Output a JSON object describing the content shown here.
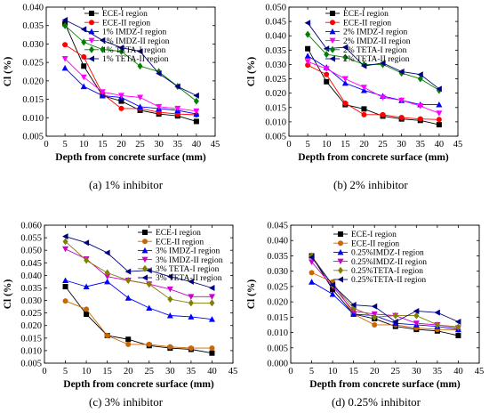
{
  "panels": [
    {
      "caption": "(a) 1% inhibitor",
      "chart_data": {
        "type": "line",
        "xlabel": "Depth from concrete surface (mm)",
        "ylabel": "Cl (%)",
        "xlim": [
          0,
          45
        ],
        "ylim": [
          0.005,
          0.04
        ],
        "xticks": [
          "0",
          "5",
          "10",
          "15",
          "20",
          "25",
          "30",
          "35",
          "40",
          "45"
        ],
        "yticks": [
          "0.005",
          "0.010",
          "0.015",
          "0.020",
          "0.025",
          "0.030",
          "0.035",
          "0.040"
        ],
        "legend_position": "top-right",
        "x": [
          5,
          10,
          15,
          20,
          25,
          30,
          35,
          40
        ],
        "series": [
          {
            "name": "ECE-I  region",
            "color": "#000000",
            "marker": "square",
            "values": [
              0.0355,
              0.024,
              0.016,
              0.0145,
              0.012,
              0.011,
              0.0105,
              0.009
            ]
          },
          {
            "name": "ECE-II region",
            "color": "#ff0000",
            "marker": "circle",
            "values": [
              0.0298,
              0.0265,
              0.0165,
              0.0125,
              0.0125,
              0.0115,
              0.011,
              0.0108
            ]
          },
          {
            "name": "1% IMDZ-I region",
            "color": "#0000ff",
            "marker": "triangle-up",
            "values": [
              0.0235,
              0.0185,
              0.016,
              0.0155,
              0.013,
              0.0125,
              0.012,
              0.011
            ]
          },
          {
            "name": "1% IMDZ-II region",
            "color": "#ff00ff",
            "marker": "triangle-down",
            "values": [
              0.026,
              0.021,
              0.017,
              0.016,
              0.0155,
              0.013,
              0.0125,
              0.0118
            ]
          },
          {
            "name": "1% TETA-I  region",
            "color": "#008000",
            "marker": "diamond",
            "values": [
              0.035,
              0.0305,
              0.0285,
              0.028,
              0.024,
              0.0225,
              0.0185,
              0.0145
            ]
          },
          {
            "name": "1% TETA-II region",
            "color": "#000080",
            "marker": "triangle-left",
            "values": [
              0.0365,
              0.034,
              0.031,
              0.029,
              0.028,
              0.022,
              0.0185,
              0.016
            ]
          }
        ]
      }
    },
    {
      "caption": "(b) 2% inhibitor",
      "chart_data": {
        "type": "line",
        "xlabel": "Depth from concrete surface (mm)",
        "ylabel": "Cl (%)",
        "xlim": [
          0,
          45
        ],
        "ylim": [
          0.005,
          0.05
        ],
        "xticks": [
          "0",
          "5",
          "10",
          "15",
          "20",
          "25",
          "30",
          "35",
          "40",
          "45"
        ],
        "yticks": [
          "0.005",
          "0.010",
          "0.015",
          "0.020",
          "0.025",
          "0.030",
          "0.035",
          "0.040",
          "0.045",
          "0.050"
        ],
        "legend_position": "top-right",
        "x": [
          5,
          10,
          15,
          20,
          25,
          30,
          35,
          40
        ],
        "series": [
          {
            "name": "ECE-I  region",
            "color": "#000000",
            "marker": "square",
            "values": [
              0.0355,
              0.024,
              0.016,
              0.0145,
              0.012,
              0.011,
              0.0105,
              0.009
            ]
          },
          {
            "name": "ECE-II region",
            "color": "#ff0000",
            "marker": "circle",
            "values": [
              0.0298,
              0.0265,
              0.0165,
              0.0125,
              0.0125,
              0.0115,
              0.011,
              0.0108
            ]
          },
          {
            "name": "2% IMDZ-I  region",
            "color": "#0000ff",
            "marker": "triangle-up",
            "values": [
              0.033,
              0.029,
              0.0235,
              0.021,
              0.019,
              0.0175,
              0.016,
              0.016
            ]
          },
          {
            "name": "2% IMDZ-II region",
            "color": "#ff00ff",
            "marker": "triangle-down",
            "values": [
              0.031,
              0.0285,
              0.025,
              0.022,
              0.0185,
              0.0175,
              0.0155,
              0.013
            ]
          },
          {
            "name": "2% TETA-I  region",
            "color": "#008000",
            "marker": "diamond",
            "values": [
              0.0405,
              0.0335,
              0.0325,
              0.03,
              0.03,
              0.027,
              0.025,
              0.021
            ]
          },
          {
            "name": "2% TETA-II region",
            "color": "#000080",
            "marker": "triangle-left",
            "values": [
              0.0445,
              0.0355,
              0.036,
              0.0295,
              0.0305,
              0.0275,
              0.0265,
              0.0215
            ]
          }
        ]
      }
    },
    {
      "caption": "(c) 3% inhibitor",
      "chart_data": {
        "type": "line",
        "xlabel": "Depth from concrete surface (mm)",
        "ylabel": "Cl (%)",
        "xlim": [
          0,
          45
        ],
        "ylim": [
          0.005,
          0.06
        ],
        "xticks": [
          "0",
          "5",
          "10",
          "15",
          "20",
          "25",
          "30",
          "35",
          "40",
          "45"
        ],
        "yticks": [
          "0.005",
          "0.010",
          "0.015",
          "0.020",
          "0.025",
          "0.030",
          "0.035",
          "0.040",
          "0.045",
          "0.050",
          "0.055",
          "0.060"
        ],
        "legend_position": "top-right",
        "x": [
          5,
          10,
          15,
          20,
          25,
          30,
          35,
          40
        ],
        "series": [
          {
            "name": "ECE-I  region",
            "color": "#000000",
            "marker": "square",
            "values": [
              0.0355,
              0.0245,
              0.016,
              0.0145,
              0.012,
              0.011,
              0.0105,
              0.009
            ]
          },
          {
            "name": "ECE-II region",
            "color": "#cc6600",
            "marker": "circle",
            "values": [
              0.0298,
              0.0265,
              0.016,
              0.0125,
              0.0125,
              0.0115,
              0.011,
              0.011
            ]
          },
          {
            "name": "3% IMDZ-I  region",
            "color": "#0000ff",
            "marker": "triangle-up",
            "values": [
              0.038,
              0.0355,
              0.0375,
              0.031,
              0.027,
              0.024,
              0.0235,
              0.0225
            ]
          },
          {
            "name": "3% IMDZ-II region",
            "color": "#cc00cc",
            "marker": "triangle-down",
            "values": [
              0.0505,
              0.0465,
              0.0395,
              0.038,
              0.0365,
              0.0345,
              0.0315,
              0.0315
            ]
          },
          {
            "name": "3% TETA-I  region",
            "color": "#808000",
            "marker": "diamond",
            "values": [
              0.0535,
              0.046,
              0.041,
              0.038,
              0.0365,
              0.0305,
              0.029,
              0.029
            ]
          },
          {
            "name": "3% TETA-II region",
            "color": "#000080",
            "marker": "triangle-left",
            "values": [
              0.0555,
              0.053,
              0.049,
              0.0415,
              0.042,
              0.0395,
              0.0375,
              0.035
            ]
          }
        ]
      }
    },
    {
      "caption": "(d) 0.25% inhibitor",
      "chart_data": {
        "type": "line",
        "xlabel": "Depth from concrete surface (mm)",
        "ylabel": "Cl (%)",
        "xlim": [
          0,
          45
        ],
        "ylim": [
          0.0,
          0.045
        ],
        "xticks": [
          "0",
          "5",
          "10",
          "15",
          "20",
          "25",
          "30",
          "35",
          "40",
          "45"
        ],
        "yticks": [
          "0.000",
          "0.005",
          "0.010",
          "0.015",
          "0.020",
          "0.025",
          "0.030",
          "0.035",
          "0.040",
          "0.045"
        ],
        "legend_position": "top-right",
        "x": [
          5,
          10,
          15,
          20,
          25,
          30,
          35,
          40
        ],
        "series": [
          {
            "name": "ECE-I  region",
            "color": "#000000",
            "marker": "square",
            "values": [
              0.035,
              0.024,
              0.016,
              0.0145,
              0.012,
              0.011,
              0.0105,
              0.009
            ]
          },
          {
            "name": "ECE-II region",
            "color": "#cc6600",
            "marker": "circle",
            "values": [
              0.0295,
              0.0265,
              0.016,
              0.0125,
              0.0125,
              0.0115,
              0.011,
              0.0108
            ]
          },
          {
            "name": "0.25%IMDZ-I  region",
            "color": "#0000ff",
            "marker": "triangle-up",
            "values": [
              0.0265,
              0.0225,
              0.016,
              0.0155,
              0.013,
              0.0125,
              0.012,
              0.011
            ]
          },
          {
            "name": "0.25%IMDZ-II region",
            "color": "#cc00cc",
            "marker": "triangle-down",
            "values": [
              0.033,
              0.025,
              0.017,
              0.016,
              0.0155,
              0.013,
              0.0125,
              0.0115
            ]
          },
          {
            "name": "0.25%TETA-I  region",
            "color": "#808000",
            "marker": "diamond",
            "values": [
              0.035,
              0.0255,
              0.018,
              0.015,
              0.0155,
              0.0155,
              0.0125,
              0.0118
            ]
          },
          {
            "name": "0.25%TETA-II region",
            "color": "#000080",
            "marker": "triangle-left",
            "values": [
              0.0345,
              0.0255,
              0.019,
              0.0185,
              0.0135,
              0.017,
              0.0165,
              0.0135
            ]
          }
        ]
      }
    }
  ]
}
